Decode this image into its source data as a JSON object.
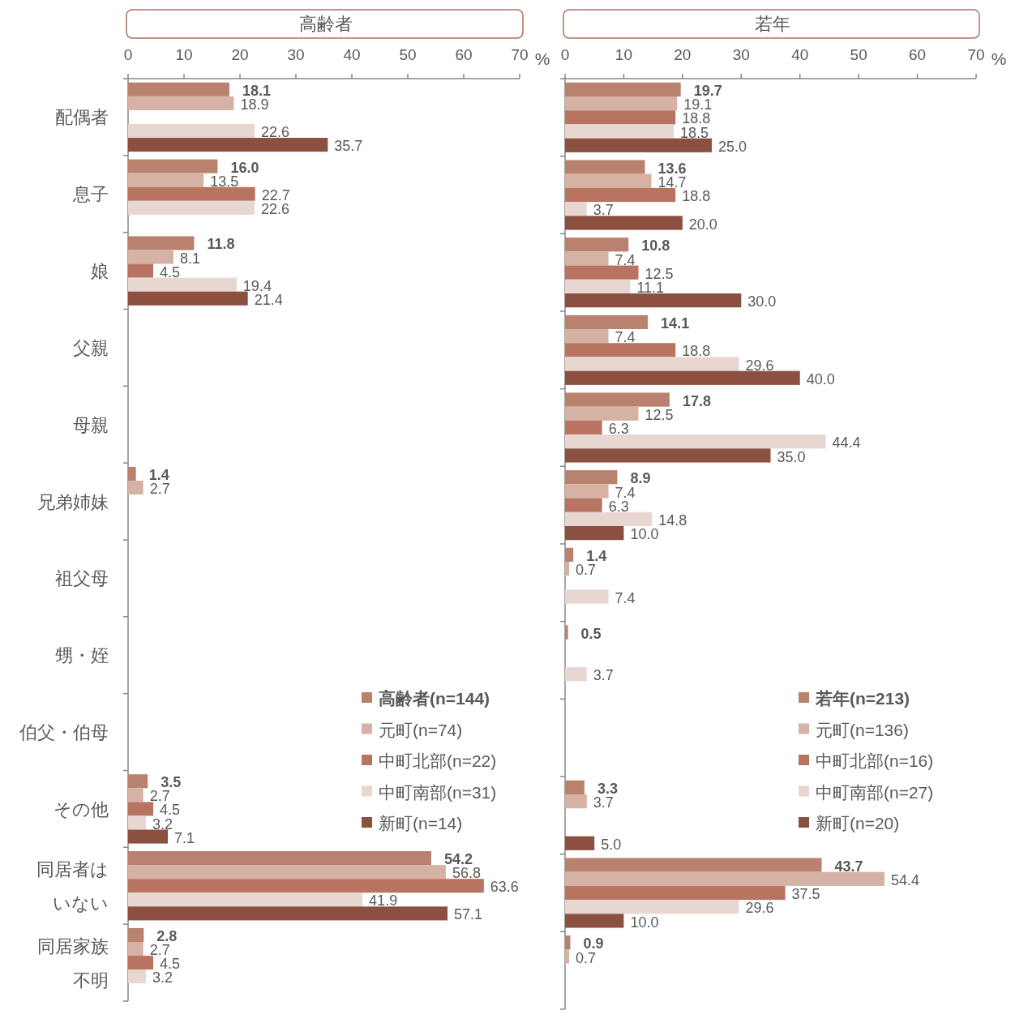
{
  "chart_data": [
    {
      "type": "bar",
      "orientation": "horizontal",
      "title": "高齢者",
      "xlabel": "%",
      "xlim": [
        0,
        70
      ],
      "xticks": [
        0,
        10,
        20,
        30,
        40,
        50,
        60,
        70
      ],
      "legend": "bottom right",
      "categories": [
        "配偶者",
        "息子",
        "娘",
        "父親",
        "母親",
        "兄弟姉妹",
        "祖父母",
        "甥・姪",
        "伯父・伯母",
        "その他",
        "同居者はいない",
        "同居家族不明"
      ],
      "series": [
        {
          "name": "高齢者(n=144)",
          "color": "#b9826e",
          "values": [
            18.1,
            16.0,
            11.8,
            null,
            null,
            1.4,
            null,
            null,
            null,
            3.5,
            54.2,
            2.8
          ],
          "value_labels": [
            "18.1",
            "16.0",
            "11.8",
            null,
            null,
            "1.4",
            null,
            null,
            null,
            "3.5",
            "54.2",
            "2.8"
          ]
        },
        {
          "name": "元町(n=74)",
          "color": "#d6b2a5",
          "values": [
            18.9,
            13.5,
            8.1,
            null,
            null,
            2.7,
            null,
            null,
            null,
            2.7,
            56.8,
            2.7
          ],
          "value_labels": [
            "18.9",
            "13.5",
            "8.1",
            null,
            null,
            "2.7",
            null,
            null,
            null,
            "2.7",
            "56.8",
            "2.7"
          ]
        },
        {
          "name": "中町北部(n=22)",
          "color": "#b87460",
          "values": [
            null,
            22.7,
            4.5,
            null,
            null,
            null,
            null,
            null,
            null,
            4.5,
            63.6,
            4.5
          ],
          "value_labels": [
            null,
            "22.7",
            "4.5",
            null,
            null,
            null,
            null,
            null,
            null,
            "4.5",
            "63.6",
            "4.5"
          ]
        },
        {
          "name": "中町南部(n=31)",
          "color": "#e8d6d0",
          "values": [
            22.6,
            22.6,
            19.4,
            null,
            null,
            null,
            null,
            null,
            null,
            3.2,
            41.9,
            3.2
          ],
          "value_labels": [
            "22.6",
            "22.6",
            "19.4",
            null,
            null,
            null,
            null,
            null,
            null,
            "3.2",
            "41.9",
            "3.2"
          ]
        },
        {
          "name": "新町(n=14)",
          "color": "#8b5040",
          "values": [
            35.7,
            null,
            21.4,
            null,
            null,
            null,
            null,
            null,
            null,
            7.1,
            57.1,
            null
          ],
          "value_labels": [
            "35.7",
            null,
            "21.4",
            null,
            null,
            null,
            null,
            null,
            null,
            "7.1",
            "57.1",
            null
          ]
        }
      ]
    },
    {
      "type": "bar",
      "orientation": "horizontal",
      "title": "若年",
      "xlabel": "%",
      "xlim": [
        0,
        70
      ],
      "xticks": [
        0,
        10,
        20,
        30,
        40,
        50,
        60,
        70
      ],
      "legend": "bottom right",
      "tick_labels": "x",
      "categories": [
        null,
        null,
        null,
        null,
        null,
        null,
        null,
        null,
        null,
        null,
        null,
        null
      ],
      "series": [
        {
          "name": "若年(n=213)",
          "color": "#b9826e",
          "values": [
            19.7,
            13.6,
            10.8,
            14.1,
            17.8,
            8.9,
            1.4,
            0.5,
            null,
            3.3,
            43.7,
            0.9
          ],
          "value_labels": [
            "19.7",
            "13.6",
            "10.8",
            "14.1",
            "17.8",
            "8.9",
            "1.4",
            "0.5",
            null,
            "3.3",
            "43.7",
            "0.9"
          ]
        },
        {
          "name": "元町(n=136)",
          "color": "#d6b2a5",
          "values": [
            19.1,
            14.7,
            7.4,
            7.4,
            12.5,
            7.4,
            0.7,
            null,
            null,
            3.7,
            54.4,
            0.7
          ],
          "value_labels": [
            "19.1",
            "14.7",
            "7.4",
            "7.4",
            "12.5",
            "7.4",
            "0.7",
            null,
            null,
            "3.7",
            "54.4",
            "0.7"
          ]
        },
        {
          "name": "中町北部(n=16)",
          "color": "#b87460",
          "values": [
            18.8,
            18.8,
            12.5,
            18.8,
            6.3,
            6.3,
            null,
            null,
            null,
            null,
            37.5,
            null
          ],
          "value_labels": [
            "18.8",
            "18.8",
            "12.5",
            "18.8",
            "6.3",
            "6.3",
            null,
            null,
            null,
            null,
            "37.5",
            null
          ]
        },
        {
          "name": "中町南部(n=27)",
          "color": "#e8d6d0",
          "values": [
            18.5,
            3.7,
            11.1,
            29.6,
            44.4,
            14.8,
            7.4,
            3.7,
            null,
            null,
            29.6,
            null
          ],
          "value_labels": [
            "18.5",
            "3.7",
            "11.1",
            "29.6",
            "44.4",
            "14.8",
            "7.4",
            "3.7",
            null,
            null,
            "29.6",
            null
          ]
        },
        {
          "name": "新町(n=20)",
          "color": "#8b5040",
          "values": [
            25.0,
            20.0,
            30.0,
            40.0,
            35.0,
            10.0,
            null,
            null,
            null,
            5.0,
            10.0,
            null
          ],
          "value_labels": [
            "25.0",
            "20.0",
            "30.0",
            "40.0",
            "35.0",
            "10.0",
            null,
            null,
            null,
            "5.0",
            "10.0",
            null
          ]
        }
      ]
    }
  ]
}
